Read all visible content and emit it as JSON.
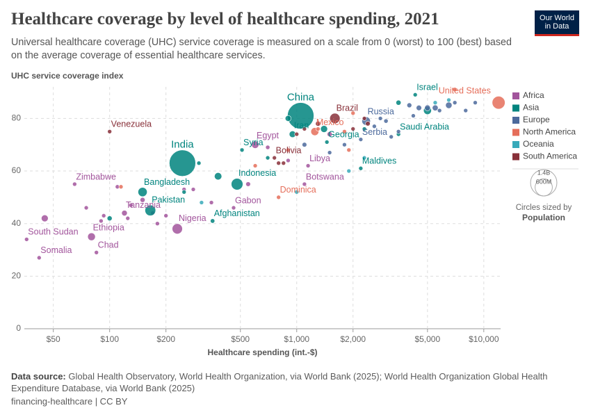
{
  "chart_data": {
    "type": "scatter",
    "title": "Healthcare coverage by level of healthcare spending, 2021",
    "subtitle": "Universal healthcare coverage (UHC) service coverage is measured on a scale from 0 (worst) to 100 (best) based on the average coverage of essential healthcare services.",
    "y_label": "UHC service coverage index",
    "x_label": "Healthcare spending (int.-$)",
    "logo": [
      "Our World",
      "in Data"
    ],
    "source_label": "Data source:",
    "source": "Global Health Observatory, World Health Organization, via World Bank (2025); World Health Organization Global Health Expenditure Database, via World Bank (2025)",
    "footer": "financing-healthcare | CC BY",
    "xscale": "log",
    "grid": true,
    "legend_position": "right",
    "xlim": [
      35,
      12300
    ],
    "ylim": [
      0,
      92
    ],
    "xticks": [
      {
        "value": 50,
        "label": "$50"
      },
      {
        "value": 100,
        "label": "$100"
      },
      {
        "value": 200,
        "label": "$200"
      },
      {
        "value": 500,
        "label": "$500"
      },
      {
        "value": 1000,
        "label": "$1,000"
      },
      {
        "value": 2000,
        "label": "$2,000"
      },
      {
        "value": 5000,
        "label": "$5,000"
      },
      {
        "value": 10000,
        "label": "$10,000"
      }
    ],
    "yticks": [
      0,
      20,
      40,
      60,
      80
    ],
    "size_legend_title": "Circles sized by",
    "size_variable": "Population",
    "size_legend": [
      {
        "value": 1400000000,
        "label": "1.4B"
      },
      {
        "value": 600000000,
        "label": "600M"
      }
    ],
    "series": [
      {
        "name": "Africa",
        "color": "#a2559c",
        "x": [
          36,
          42,
          45,
          65,
          80,
          85,
          93,
          120,
          230,
          460,
          600,
          1100,
          1150,
          75,
          110,
          130,
          150,
          170,
          200,
          250,
          280,
          350,
          700,
          900,
          1500,
          90,
          125,
          180,
          550
        ],
        "values": [
          34,
          27,
          42,
          55,
          35,
          29,
          43,
          44,
          38,
          46,
          70,
          55,
          62,
          46,
          54,
          47,
          49,
          44,
          43,
          53,
          53,
          48,
          69,
          64,
          74,
          41,
          42,
          40,
          55
        ],
        "sizes": [
          11000000,
          17000000,
          95000000,
          16000000,
          120000000,
          17000000,
          30000000,
          64000000,
          213000000,
          2300000,
          109000000,
          2500000,
          6700000,
          5000000,
          20000000,
          15000000,
          50000000,
          20000000,
          33000000,
          27000000,
          28000000,
          26000000,
          37000000,
          12000000,
          50000000,
          8000000,
          19000000,
          29000000,
          45000000
        ],
        "names": [
          "South Sudan",
          "Somalia",
          null,
          "Zimbabwe",
          "Ethiopia",
          "Chad",
          null,
          "Tanzania",
          "Nigeria",
          "Gabon",
          "Egypt",
          "Botswana",
          "Libya",
          null,
          null,
          null,
          null,
          null,
          null,
          null,
          null,
          null,
          null,
          null,
          null,
          null,
          null,
          null,
          null
        ]
      },
      {
        "name": "Asia",
        "color": "#00847e",
        "x": [
          1050,
          245,
          480,
          150,
          165,
          355,
          950,
          510,
          4300,
          3500,
          1450,
          2200,
          1400,
          5000,
          380,
          900,
          250,
          100,
          3500,
          2300,
          700,
          300
        ],
        "values": [
          81,
          63,
          55,
          52,
          45,
          41,
          74,
          68,
          89,
          74,
          71,
          61,
          76,
          83,
          58,
          80,
          52,
          42,
          86,
          76,
          65,
          63
        ],
        "sizes": [
          1410000000,
          1400000000,
          274000000,
          169000000,
          231000000,
          40000000,
          88000000,
          21000000,
          9000000,
          36000000,
          3700000,
          500000,
          98000000,
          125000000,
          110000000,
          70000000,
          30000000,
          50000000,
          52000000,
          32000000,
          5000000,
          10000000
        ],
        "names": [
          "China",
          "India",
          "Indonesia",
          "Bangladesh",
          "Pakistan",
          "Afghanistan",
          "Iran",
          "Syria",
          "Israel",
          "Saudi Arabia",
          "Georgia",
          "Maldives",
          null,
          null,
          null,
          null,
          null,
          null,
          null,
          null,
          null,
          null
        ]
      },
      {
        "name": "Europe",
        "color": "#4c6a9c",
        "x": [
          2350,
          2200,
          6500,
          5000,
          5500,
          4500,
          4000,
          3000,
          1100,
          8000,
          9000,
          2600,
          3200,
          4200,
          7000,
          2800,
          1800,
          1500,
          5800,
          3500
        ],
        "values": [
          79,
          72,
          85,
          84,
          84,
          84,
          85,
          79,
          70,
          83,
          86,
          77,
          73,
          81,
          86,
          80,
          70,
          67,
          83,
          75
        ],
        "sizes": [
          145000000,
          6800000,
          83000000,
          67000000,
          68000000,
          59000000,
          47000000,
          38000000,
          44000000,
          5400000,
          8700000,
          10000000,
          19000000,
          10000000,
          17000000,
          1400000,
          2800000,
          3000000,
          5000000,
          6900000
        ],
        "names": [
          "Russia",
          "Serbia",
          null,
          null,
          null,
          null,
          null,
          null,
          null,
          null,
          null,
          null,
          null,
          null,
          null,
          null,
          null,
          null,
          null,
          null
        ]
      },
      {
        "name": "North America",
        "color": "#e56e5a",
        "x": [
          12000,
          1250,
          800,
          7000,
          1300,
          900,
          600,
          115,
          1800,
          2000,
          1900
        ],
        "values": [
          86,
          75,
          50,
          91,
          76,
          68,
          62,
          54,
          75,
          82,
          68
        ],
        "sizes": [
          336000000,
          127000000,
          70000,
          38000000,
          5000000,
          11000000,
          17000000,
          11000000,
          11000000,
          300000,
          2800000
        ],
        "names": [
          "United States",
          "Mexico",
          "Dominica",
          null,
          null,
          null,
          null,
          null,
          null,
          null,
          null
        ]
      },
      {
        "name": "Oceania",
        "color": "#38aaba",
        "x": [
          6500,
          5500,
          2300,
          1900,
          310,
          1000
        ],
        "values": [
          87,
          86,
          65,
          60,
          48,
          52
        ],
        "sizes": [
          26000000,
          5000000,
          900000,
          200000,
          10000000,
          100000
        ],
        "names": [
          null,
          null,
          null,
          null,
          null,
          null
        ]
      },
      {
        "name": "South America",
        "color": "#883039",
        "x": [
          100,
          1600,
          760,
          2400,
          2300,
          1300,
          1100,
          1000,
          850,
          2000,
          800
        ],
        "values": [
          75,
          80,
          65,
          78,
          80,
          78,
          76,
          74,
          63,
          76,
          63
        ],
        "sizes": [
          28000000,
          214000000,
          12000000,
          45000000,
          19000000,
          51000000,
          33000000,
          18000000,
          7000000,
          3400000,
          800000
        ],
        "names": [
          "Venezuela",
          "Brazil",
          "Bolivia",
          null,
          null,
          null,
          null,
          null,
          null,
          null,
          null
        ]
      }
    ]
  }
}
